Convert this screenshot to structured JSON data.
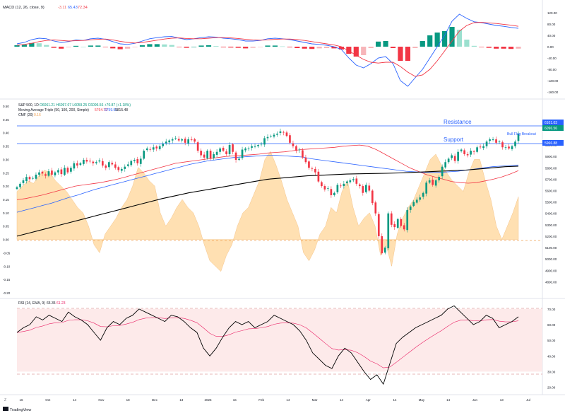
{
  "macd_panel": {
    "legend": "MACD (12, 26, close, 9)",
    "values": [
      "-3.11",
      "65.43",
      "72.34"
    ],
    "value_colors": [
      "#ef5350",
      "#2962ff",
      "#f23645"
    ],
    "ticks": [
      "120.00",
      "80.00",
      "40.00",
      "0.00",
      "-40.00",
      "-80.00",
      "-120.00",
      "-160.00"
    ]
  },
  "price_panel": {
    "legend_line1_symbol": "S&P 500, 1D",
    "legend_line1_ohlc": "O6061.21  H6097.07  L6059.25  C6096.56  +70.87 (+1.18%)",
    "legend_line2_name": "Moving Average Triple (50, 100, 200, Simple)",
    "legend_line2_values": [
      "5764.72",
      "5759.91",
      "5815.48"
    ],
    "legend_line3_name": "CMF (20)",
    "legend_line3_value": "0.16",
    "right_ticks": [
      "6200.00",
      "6000.00",
      "5900.00",
      "5800.00",
      "5700.00",
      "5600.00",
      "5500.00",
      "5400.00",
      "5300.00",
      "5200.00",
      "5100.00",
      "5000.00",
      "4900.00",
      "4800.00"
    ],
    "left_ticks": [
      "0.50",
      "0.45",
      "0.40",
      "0.35",
      "0.30",
      "0.25",
      "0.20",
      "0.15",
      "0.10",
      "0.05",
      "0.00",
      "-0.05",
      "-0.10",
      "-0.15",
      "-0.20"
    ],
    "price_tags": [
      "6101.03",
      "6096.56",
      "5966.88"
    ],
    "price_tag_colors": [
      "#2962ff",
      "#089981",
      "#2962ff"
    ],
    "annotations": {
      "resistance": "Resistance",
      "support": "Support",
      "breakout": "Bull Flag Breakout"
    },
    "annotation_color": "#2962ff"
  },
  "rsi_panel": {
    "legend": "RSI (14, EMA, 9)",
    "values": [
      "65.35",
      "61.23"
    ],
    "value_colors": [
      "#131722",
      "#e91e63"
    ],
    "ticks": [
      "70.00",
      "60.00",
      "50.00",
      "40.00",
      "30.00",
      "20.00"
    ]
  },
  "time_axis": [
    "16",
    "Oct",
    "14",
    "Nov",
    "18",
    "Dec",
    "13",
    "2025",
    "16",
    "Feb",
    "14",
    "Mar",
    "14",
    "Apr",
    "14",
    "May",
    "14",
    "Jun",
    "13",
    "Jul"
  ],
  "footer": {
    "brand": "TradingView",
    "tz_label": "Z"
  },
  "colors": {
    "up": "#089981",
    "down": "#f23645",
    "ma50": "#f23645",
    "ma100": "#2962ff",
    "ma200": "#000000",
    "cmf_fill": "#ffe0b2",
    "rsi_line": "#000000",
    "rsi_ma": "#e91e63",
    "rsi_band": "#fdeaea"
  },
  "chart_data": {
    "type": "candlestick",
    "title": "S&P 500, 1D",
    "ylim": [
      4790,
      6230
    ],
    "closes": [
      5630,
      5660,
      5690,
      5720,
      5700,
      5710,
      5740,
      5760,
      5750,
      5730,
      5770,
      5740,
      5760,
      5780,
      5745,
      5800,
      5760,
      5800,
      5840,
      5820,
      5840,
      5870,
      5855,
      5860,
      5840,
      5850,
      5865,
      5820,
      5800,
      5850,
      5830,
      5800,
      5780,
      5790,
      5810,
      5830,
      5860,
      5870,
      5840,
      5880,
      5950,
      5970,
      5960,
      5980,
      5970,
      5990,
      6010,
      6030,
      6040,
      6050,
      6060,
      6040,
      6050,
      6020,
      6050,
      6045,
      6030,
      5950,
      5910,
      5890,
      5950,
      5880,
      5920,
      5940,
      5970,
      5950,
      5920,
      6000,
      5940,
      5870,
      5880,
      5960,
      5970,
      5970,
      5990,
      5990,
      6000,
      6010,
      6060,
      6070,
      6080,
      6090,
      6100,
      6120,
      6110,
      6080,
      6020,
      5990,
      5950,
      5960,
      5890,
      5850,
      5800,
      5790,
      5760,
      5680,
      5640,
      5610,
      5620,
      5560,
      5580,
      5650,
      5640,
      5660,
      5680,
      5690,
      5700,
      5660,
      5640,
      5580,
      5650,
      5600,
      5490,
      5400,
      5200,
      5050,
      5100,
      5400,
      5300,
      5280,
      5350,
      5290,
      5260,
      5430,
      5460,
      5500,
      5520,
      5540,
      5580,
      5670,
      5690,
      5650,
      5690,
      5720,
      5810,
      5850,
      5880,
      5910,
      5860,
      5940,
      5960,
      5920,
      5910,
      5950,
      5940,
      5980,
      5980,
      5990,
      6030,
      6050,
      6050,
      6020,
      6030,
      5980,
      5980,
      5970,
      5990,
      6030,
      6100
    ],
    "opens_offset_note": "",
    "series": [
      {
        "name": "MA 50",
        "values": [
          5520,
          5530,
          5545,
          5560,
          5580,
          5600,
          5620,
          5640,
          5650,
          5660,
          5670,
          5685,
          5700,
          5720,
          5740,
          5760,
          5780,
          5800,
          5820,
          5840,
          5850,
          5860,
          5870,
          5880,
          5890,
          5900,
          5905,
          5910,
          5915,
          5920,
          5930,
          5935,
          5940,
          5950,
          5960,
          5965,
          5970,
          5975,
          5980,
          5990,
          5995,
          6000,
          5990,
          5960,
          5920,
          5880,
          5840,
          5800,
          5770,
          5740,
          5720,
          5700,
          5680,
          5670,
          5665,
          5670,
          5685,
          5700,
          5720,
          5745,
          5775
        ]
      },
      {
        "name": "MA 100",
        "values": [
          5410,
          5430,
          5450,
          5470,
          5490,
          5515,
          5540,
          5560,
          5585,
          5610,
          5630,
          5650,
          5670,
          5690,
          5710,
          5730,
          5750,
          5770,
          5790,
          5810,
          5830,
          5845,
          5860,
          5870,
          5880,
          5890,
          5895,
          5900,
          5905,
          5910,
          5910,
          5905,
          5900,
          5895,
          5880,
          5870,
          5860,
          5850,
          5840,
          5830,
          5820,
          5810,
          5800,
          5790,
          5780,
          5770,
          5765,
          5760,
          5760,
          5760,
          5765,
          5770,
          5780,
          5790,
          5800,
          5810,
          5815,
          5820,
          5825
        ]
      },
      {
        "name": "MA 200",
        "values": [
          5200,
          5230,
          5260,
          5290,
          5320,
          5350,
          5380,
          5410,
          5440,
          5470,
          5500,
          5530,
          5555,
          5580,
          5600,
          5620,
          5640,
          5660,
          5680,
          5700,
          5710,
          5720,
          5730,
          5735,
          5740,
          5745,
          5748,
          5750,
          5752,
          5755,
          5760,
          5765,
          5770,
          5775,
          5780,
          5790,
          5800,
          5810,
          5815
        ]
      }
    ],
    "cmf": [
      0.18,
      0.2,
      0.22,
      0.21,
      0.24,
      0.26,
      0.25,
      0.22,
      0.2,
      0.18,
      0.15,
      0.12,
      0.1,
      0.05,
      -0.02,
      -0.05,
      0.02,
      0.05,
      0.08,
      0.12,
      0.15,
      0.2,
      0.27,
      0.25,
      0.22,
      0.2,
      0.1,
      0.05,
      0.08,
      0.12,
      0.15,
      0.12,
      0.1,
      0.05,
      -0.02,
      -0.08,
      -0.1,
      -0.12,
      -0.06,
      -0.02,
      0.05,
      0.1,
      0.12,
      0.17,
      0.22,
      0.3,
      0.33,
      0.28,
      0.22,
      0.15,
      0.1,
      0.05,
      -0.05,
      -0.08,
      -0.04,
      0.02,
      0.05,
      0.12,
      0.1,
      0.18,
      0.22,
      0.12,
      0.05,
      0.08,
      0.1,
      0.05,
      -0.06,
      -0.02,
      -0.1,
      0.02,
      0.08,
      0.12,
      0.15,
      0.2,
      0.25,
      0.3,
      0.32,
      0.28,
      0.25,
      0.22,
      0.2,
      0.18,
      0.25,
      0.3,
      0.3,
      0.22,
      0.15,
      0.05,
      0.0,
      0.05,
      0.1,
      0.16
    ],
    "macd": [
      10,
      15,
      25,
      30,
      28,
      20,
      15,
      18,
      24,
      22,
      28,
      30,
      26,
      18,
      10,
      8,
      12,
      20,
      28,
      32,
      35,
      36,
      30,
      25,
      28,
      32,
      35,
      34,
      30,
      28,
      25,
      20,
      20,
      22,
      28,
      30,
      28,
      25,
      20,
      15,
      10,
      8,
      5,
      0,
      -10,
      -40,
      -65,
      -75,
      -60,
      -40,
      -35,
      -60,
      -120,
      -140,
      -110,
      -80,
      -40,
      0,
      40,
      90,
      115,
      100,
      88,
      85,
      80,
      75,
      72,
      68,
      65
    ],
    "macd_signal": [
      5,
      8,
      12,
      18,
      22,
      24,
      22,
      20,
      21,
      22,
      24,
      26,
      27,
      24,
      19,
      15,
      13,
      15,
      19,
      23,
      27,
      30,
      31,
      29,
      28,
      28,
      30,
      32,
      32,
      31,
      29,
      26,
      24,
      23,
      24,
      26,
      27,
      27,
      25,
      22,
      18,
      14,
      10,
      6,
      0,
      -15,
      -30,
      -45,
      -55,
      -58,
      -55,
      -55,
      -70,
      -90,
      -105,
      -100,
      -80,
      -50,
      -15,
      20,
      55,
      75,
      85,
      86,
      84,
      82,
      79,
      76,
      72
    ],
    "rsi": [
      55,
      58,
      60,
      65,
      63,
      66,
      64,
      62,
      68,
      65,
      63,
      60,
      55,
      50,
      58,
      62,
      60,
      64,
      66,
      70,
      68,
      66,
      64,
      62,
      66,
      65,
      62,
      58,
      55,
      45,
      40,
      45,
      52,
      58,
      62,
      60,
      62,
      58,
      60,
      62,
      66,
      64,
      62,
      60,
      56,
      50,
      42,
      38,
      34,
      32,
      40,
      45,
      42,
      36,
      30,
      25,
      28,
      22,
      35,
      48,
      52,
      55,
      58,
      60,
      62,
      64,
      66,
      70,
      72,
      68,
      64,
      60,
      62,
      66,
      64,
      58,
      60,
      62,
      65
    ],
    "rsi_ylim": [
      18,
      74
    ]
  }
}
